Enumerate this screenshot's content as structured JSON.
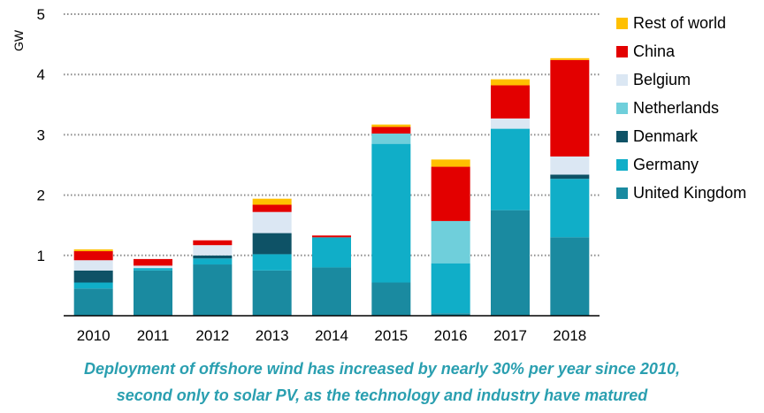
{
  "chart_data": {
    "type": "bar",
    "stacked": true,
    "ylabel": "GW",
    "ylim": [
      0,
      5
    ],
    "yticks": [
      1,
      2,
      3,
      4,
      5
    ],
    "grid": "dotted horizontal",
    "legend_position": "right",
    "categories": [
      "2010",
      "2011",
      "2012",
      "2013",
      "2014",
      "2015",
      "2016",
      "2017",
      "2018"
    ],
    "series": [
      {
        "name": "United Kingdom",
        "color": "#1a8aa0",
        "values": [
          0.45,
          0.75,
          0.85,
          0.75,
          0.8,
          0.55,
          0.04,
          1.75,
          1.3
        ]
      },
      {
        "name": "Germany",
        "color": "#10aec8",
        "values": [
          0.1,
          0.04,
          0.1,
          0.27,
          0.5,
          2.3,
          0.83,
          1.35,
          0.97
        ]
      },
      {
        "name": "Denmark",
        "color": "#0e5266",
        "values": [
          0.2,
          0.0,
          0.05,
          0.35,
          0.0,
          0.0,
          0.0,
          0.0,
          0.07
        ]
      },
      {
        "name": "Netherlands",
        "color": "#6fcfdb",
        "values": [
          0.0,
          0.0,
          0.0,
          0.0,
          0.0,
          0.17,
          0.7,
          0.0,
          0.0
        ]
      },
      {
        "name": "Belgium",
        "color": "#dbe7f3",
        "values": [
          0.17,
          0.04,
          0.17,
          0.35,
          0.0,
          0.0,
          0.0,
          0.17,
          0.3
        ]
      },
      {
        "name": "China",
        "color": "#e30000",
        "values": [
          0.15,
          0.11,
          0.08,
          0.12,
          0.03,
          0.11,
          0.9,
          0.55,
          1.6
        ]
      },
      {
        "name": "Rest of world",
        "color": "#ffc000",
        "values": [
          0.03,
          0.0,
          0.0,
          0.1,
          0.0,
          0.04,
          0.12,
          0.1,
          0.03
        ]
      }
    ]
  },
  "caption": {
    "line1": "Deployment of offshore wind has increased by nearly 30% per year since 2010,",
    "line2": "second only to solar PV, as the technology and industry have matured"
  }
}
